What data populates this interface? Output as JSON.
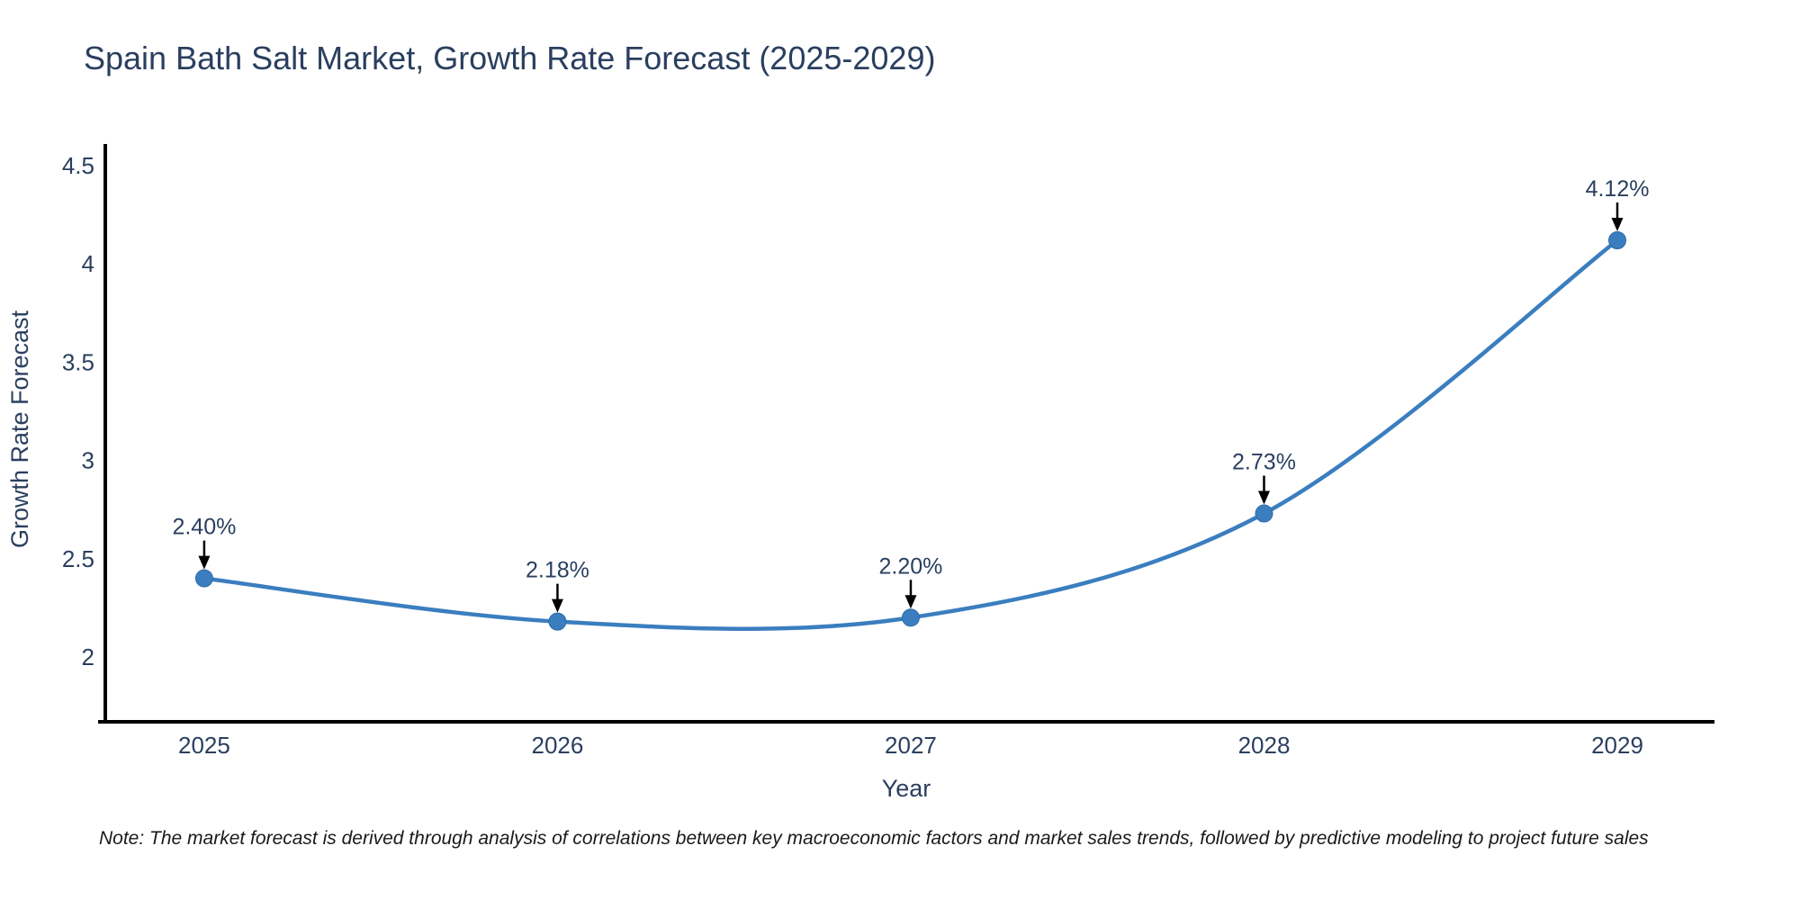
{
  "title": "Spain Bath Salt Market, Growth Rate Forecast (2025-2029)",
  "note": "Note: The market forecast is derived through analysis of correlations between key macroeconomic factors and market sales trends, followed by predictive modeling to project future sales",
  "chart_data": {
    "type": "line",
    "title": "Spain Bath Salt Market, Growth Rate Forecast (2025-2029)",
    "xlabel": "Year",
    "ylabel": "Growth Rate Forecast",
    "x": [
      2025,
      2026,
      2027,
      2028,
      2029
    ],
    "series": [
      {
        "name": "Growth Rate Forecast",
        "values": [
          2.4,
          2.18,
          2.2,
          2.73,
          4.12
        ]
      }
    ],
    "point_labels": [
      "2.40%",
      "2.18%",
      "2.20%",
      "2.73%",
      "4.12%"
    ],
    "xtick_labels": [
      "2025",
      "2026",
      "2027",
      "2028",
      "2029"
    ],
    "ytick_values": [
      2,
      2.5,
      3,
      3.5,
      4,
      4.5
    ],
    "ytick_labels": [
      "2",
      "2.5",
      "3",
      "3.5",
      "4",
      "4.5"
    ],
    "xlim": [
      2024.72,
      2029.27
    ],
    "ylim": [
      1.67,
      4.61
    ],
    "line_shape": "spline",
    "grid": false,
    "legend": "none",
    "annotations_have_arrows": true,
    "colors": {
      "line": "#3a7ebf",
      "marker": "#3a7ebf",
      "marker_edge": "#2f6da8",
      "axis_line": "#000000",
      "tick_text": "#2a3f5f",
      "annotation_text": "#2a3f5f",
      "arrow": "#000000",
      "background": "#ffffff"
    }
  }
}
